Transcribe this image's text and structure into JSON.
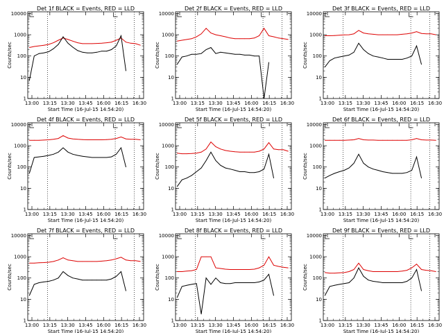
{
  "chart_data": [
    {
      "type": "line",
      "title": "Det 1f BLACK = Events, RED = LLD",
      "ylabel": "Counts/sec",
      "xlabel": "Start Time (16-Jul-15 14:54:20)",
      "series": [
        {
          "name": "BLACK = Events",
          "color": "#000000",
          "x": [
            13.0,
            13.15,
            13.3,
            13.45,
            13.6,
            13.75,
            13.9,
            14.05,
            14.2,
            14.35,
            14.5,
            14.65,
            14.8,
            14.95,
            15.1,
            15.25,
            15.4,
            15.55,
            15.7,
            15.85,
            16.0,
            16.15,
            16.3,
            16.45
          ],
          "y": [
            7,
            100,
            130,
            140,
            160,
            220,
            350,
            800,
            400,
            260,
            180,
            150,
            140,
            140,
            150,
            170,
            170,
            200,
            300,
            900,
            20,
            null,
            null,
            null
          ]
        },
        {
          "name": "RED = LLD",
          "color": "#dd0000",
          "x": [
            13.0,
            13.15,
            13.3,
            13.45,
            13.6,
            13.75,
            13.9,
            14.05,
            14.2,
            14.35,
            14.5,
            14.65,
            14.8,
            14.95,
            15.1,
            15.25,
            15.4,
            15.55,
            15.7,
            15.85,
            16.0,
            16.15,
            16.3,
            16.45
          ],
          "y": [
            250,
            280,
            300,
            320,
            350,
            420,
            550,
            700,
            600,
            500,
            420,
            380,
            380,
            380,
            390,
            400,
            420,
            450,
            550,
            700,
            450,
            400,
            380,
            320
          ]
        }
      ]
    },
    {
      "type": "line",
      "title": "Det 2f BLACK = Events, RED = LLD",
      "ylabel": "Counts/sec",
      "xlabel": "Start Time (16-Jul-15 14:54:20)",
      "series": [
        {
          "name": "BLACK = Events",
          "color": "#000000",
          "x": [
            13.0,
            13.15,
            13.3,
            13.45,
            13.6,
            13.75,
            13.9,
            14.05,
            14.2,
            14.35,
            14.5,
            14.65,
            14.8,
            14.95,
            15.1,
            15.25,
            15.4,
            15.55,
            15.7,
            15.85,
            16.0,
            16.15,
            16.3,
            16.45
          ],
          "y": [
            40,
            90,
            100,
            120,
            120,
            130,
            200,
            250,
            130,
            150,
            140,
            130,
            120,
            120,
            110,
            110,
            100,
            100,
            1,
            50,
            null,
            null,
            null,
            null
          ]
        },
        {
          "name": "RED = LLD",
          "color": "#dd0000",
          "x": [
            13.0,
            13.15,
            13.3,
            13.45,
            13.6,
            13.75,
            13.9,
            14.05,
            14.2,
            14.35,
            14.5,
            14.65,
            14.8,
            14.95,
            15.1,
            15.25,
            15.4,
            15.55,
            15.7,
            15.85,
            16.0,
            16.15,
            16.3,
            16.45
          ],
          "y": [
            500,
            550,
            600,
            650,
            800,
            1100,
            2000,
            1200,
            1000,
            900,
            800,
            700,
            650,
            650,
            650,
            650,
            700,
            900,
            2000,
            900,
            800,
            700,
            650,
            600
          ]
        }
      ]
    },
    {
      "type": "line",
      "title": "Det 3f BLACK = Events, RED = LLD",
      "ylabel": "Counts/sec",
      "xlabel": "Start Time (16-Jul-15 14:54:20)",
      "series": [
        {
          "name": "BLACK = Events",
          "color": "#000000",
          "x": [
            13.0,
            13.15,
            13.3,
            13.45,
            13.6,
            13.75,
            13.9,
            14.05,
            14.2,
            14.35,
            14.5,
            14.65,
            14.8,
            14.95,
            15.1,
            15.25,
            15.4,
            15.55,
            15.7,
            15.85,
            16.0,
            16.15,
            16.3,
            16.45
          ],
          "y": [
            30,
            60,
            80,
            90,
            100,
            110,
            150,
            400,
            200,
            130,
            100,
            90,
            80,
            70,
            70,
            70,
            70,
            80,
            100,
            300,
            40,
            null,
            null,
            null
          ]
        },
        {
          "name": "RED = LLD",
          "color": "#dd0000",
          "x": [
            13.0,
            13.15,
            13.3,
            13.45,
            13.6,
            13.75,
            13.9,
            14.05,
            14.2,
            14.35,
            14.5,
            14.65,
            14.8,
            14.95,
            15.1,
            15.25,
            15.4,
            15.55,
            15.7,
            15.85,
            16.0,
            16.15,
            16.3,
            16.45
          ],
          "y": [
            900,
            900,
            920,
            950,
            980,
            1000,
            1100,
            1600,
            1200,
            1100,
            1050,
            1000,
            1000,
            1000,
            1000,
            1000,
            1050,
            1100,
            1200,
            1400,
            1150,
            1100,
            1100,
            1000
          ]
        }
      ]
    },
    {
      "type": "line",
      "title": "Det 4f BLACK = Events, RED = LLD",
      "ylabel": "Counts/sec",
      "xlabel": "Start Time (16-Jul-15 14:54:20)",
      "series": [
        {
          "name": "BLACK = Events",
          "color": "#000000",
          "x": [
            13.0,
            13.15,
            13.3,
            13.45,
            13.6,
            13.75,
            13.9,
            14.05,
            14.2,
            14.35,
            14.5,
            14.65,
            14.8,
            14.95,
            15.1,
            15.25,
            15.4,
            15.55,
            15.7,
            15.85,
            16.0,
            16.15,
            16.3,
            16.45
          ],
          "y": [
            50,
            280,
            300,
            320,
            350,
            400,
            500,
            800,
            500,
            400,
            350,
            320,
            300,
            280,
            280,
            280,
            280,
            300,
            400,
            800,
            100,
            null,
            null,
            null
          ]
        },
        {
          "name": "RED = LLD",
          "color": "#dd0000",
          "x": [
            13.0,
            13.15,
            13.3,
            13.45,
            13.6,
            13.75,
            13.9,
            14.05,
            14.2,
            14.35,
            14.5,
            14.65,
            14.8,
            14.95,
            15.1,
            15.25,
            15.4,
            15.55,
            15.7,
            15.85,
            16.0,
            16.15,
            16.3,
            16.45
          ],
          "y": [
            1800,
            1800,
            1800,
            1850,
            1900,
            2000,
            2200,
            3000,
            2300,
            2100,
            2000,
            1950,
            1900,
            1900,
            1900,
            1900,
            1950,
            2000,
            2200,
            2600,
            2100,
            2000,
            2000,
            1900
          ]
        }
      ]
    },
    {
      "type": "line",
      "title": "Det 5f BLACK = Events, RED = LLD",
      "ylabel": "Counts/sec",
      "xlabel": "Start Time (16-Jul-15 14:54:20)",
      "series": [
        {
          "name": "BLACK = Events",
          "color": "#000000",
          "x": [
            13.0,
            13.15,
            13.3,
            13.45,
            13.6,
            13.75,
            13.9,
            14.05,
            14.2,
            14.35,
            14.5,
            14.65,
            14.8,
            14.95,
            15.1,
            15.25,
            15.4,
            15.55,
            15.7,
            15.85,
            16.0,
            16.15,
            16.3,
            16.45
          ],
          "y": [
            12,
            25,
            30,
            40,
            60,
            90,
            200,
            500,
            200,
            120,
            90,
            80,
            70,
            60,
            60,
            55,
            55,
            60,
            80,
            400,
            30,
            null,
            null,
            null
          ]
        },
        {
          "name": "RED = LLD",
          "color": "#dd0000",
          "x": [
            13.0,
            13.15,
            13.3,
            13.45,
            13.6,
            13.75,
            13.9,
            14.05,
            14.2,
            14.35,
            14.5,
            14.65,
            14.8,
            14.95,
            15.1,
            15.25,
            15.4,
            15.55,
            15.7,
            15.85,
            16.0,
            16.15,
            16.3,
            16.45
          ],
          "y": [
            450,
            420,
            420,
            430,
            450,
            500,
            700,
            1500,
            900,
            700,
            600,
            550,
            520,
            500,
            500,
            500,
            500,
            550,
            700,
            1400,
            700,
            650,
            650,
            550
          ]
        }
      ]
    },
    {
      "type": "line",
      "title": "Det 6f BLACK = Events, RED = LLD",
      "ylabel": "Counts/sec",
      "xlabel": "Start Time (16-Jul-15 14:54:20)",
      "series": [
        {
          "name": "BLACK = Events",
          "color": "#000000",
          "x": [
            13.0,
            13.15,
            13.3,
            13.45,
            13.6,
            13.75,
            13.9,
            14.05,
            14.2,
            14.35,
            14.5,
            14.65,
            14.8,
            14.95,
            15.1,
            15.25,
            15.4,
            15.55,
            15.7,
            15.85,
            16.0,
            16.15,
            16.3,
            16.45
          ],
          "y": [
            30,
            40,
            50,
            60,
            70,
            90,
            150,
            400,
            150,
            100,
            80,
            70,
            60,
            55,
            50,
            50,
            50,
            55,
            70,
            300,
            30,
            null,
            null,
            null
          ]
        },
        {
          "name": "RED = LLD",
          "color": "#dd0000",
          "x": [
            13.0,
            13.15,
            13.3,
            13.45,
            13.6,
            13.75,
            13.9,
            14.05,
            14.2,
            14.35,
            14.5,
            14.65,
            14.8,
            14.95,
            15.1,
            15.25,
            15.4,
            15.55,
            15.7,
            15.85,
            16.0,
            16.15,
            16.3,
            16.45
          ],
          "y": [
            1800,
            1800,
            1800,
            1800,
            1800,
            1850,
            1900,
            2200,
            1900,
            1850,
            1850,
            1800,
            1800,
            1800,
            1800,
            1800,
            1800,
            1800,
            1900,
            2200,
            1900,
            1850,
            1850,
            1800
          ]
        }
      ]
    },
    {
      "type": "line",
      "title": "Det 7f BLACK = Events, RED = LLD",
      "ylabel": "Counts/sec",
      "xlabel": "Start Time (16-Jul-15 14:54:20)",
      "series": [
        {
          "name": "BLACK = Events",
          "color": "#000000",
          "x": [
            13.0,
            13.15,
            13.3,
            13.45,
            13.6,
            13.75,
            13.9,
            14.05,
            14.2,
            14.35,
            14.5,
            14.65,
            14.8,
            14.95,
            15.1,
            15.25,
            15.4,
            15.55,
            15.7,
            15.85,
            16.0,
            16.15,
            16.3,
            16.45
          ],
          "y": [
            15,
            50,
            60,
            65,
            70,
            80,
            100,
            200,
            130,
            100,
            90,
            80,
            80,
            80,
            80,
            80,
            80,
            90,
            120,
            200,
            25,
            null,
            null,
            null
          ]
        },
        {
          "name": "RED = LLD",
          "color": "#dd0000",
          "x": [
            13.0,
            13.15,
            13.3,
            13.45,
            13.6,
            13.75,
            13.9,
            14.05,
            14.2,
            14.35,
            14.5,
            14.65,
            14.8,
            14.95,
            15.1,
            15.25,
            15.4,
            15.55,
            15.7,
            15.85,
            16.0,
            16.15,
            16.3,
            16.45
          ],
          "y": [
            500,
            500,
            520,
            530,
            550,
            600,
            700,
            900,
            700,
            650,
            600,
            600,
            600,
            600,
            600,
            620,
            650,
            700,
            800,
            950,
            700,
            650,
            650,
            600
          ]
        }
      ]
    },
    {
      "type": "line",
      "title": "Det 8f BLACK = Events, RED = LLD",
      "ylabel": "Counts/sec",
      "xlabel": "Start Time (16-Jul-15 14:54:20)",
      "series": [
        {
          "name": "BLACK = Events",
          "color": "#000000",
          "x": [
            13.0,
            13.15,
            13.3,
            13.45,
            13.6,
            13.75,
            13.9,
            14.05,
            14.2,
            14.35,
            14.5,
            14.65,
            14.8,
            14.95,
            15.1,
            15.25,
            15.4,
            15.55,
            15.7,
            15.85,
            16.0,
            16.15,
            16.3,
            16.45
          ],
          "y": [
            12,
            40,
            45,
            50,
            55,
            2,
            100,
            50,
            100,
            60,
            55,
            55,
            60,
            60,
            60,
            60,
            60,
            65,
            80,
            150,
            15,
            null,
            null,
            null
          ]
        },
        {
          "name": "RED = LLD",
          "color": "#dd0000",
          "x": [
            13.0,
            13.15,
            13.3,
            13.45,
            13.6,
            13.75,
            13.9,
            14.05,
            14.2,
            14.35,
            14.5,
            14.65,
            14.8,
            14.95,
            15.1,
            15.25,
            15.4,
            15.55,
            15.7,
            15.85,
            16.0,
            16.15,
            16.3,
            16.45
          ],
          "y": [
            200,
            200,
            210,
            220,
            250,
            1000,
            1000,
            1000,
            300,
            280,
            260,
            250,
            250,
            250,
            250,
            250,
            260,
            300,
            400,
            1000,
            400,
            350,
            320,
            300
          ]
        }
      ]
    },
    {
      "type": "line",
      "title": "Det 9f BLACK = Events, RED = LLD",
      "ylabel": "Counts/sec",
      "xlabel": "Start Time (16-Jul-15 14:54:20)",
      "series": [
        {
          "name": "BLACK = Events",
          "color": "#000000",
          "x": [
            13.0,
            13.15,
            13.3,
            13.45,
            13.6,
            13.75,
            13.9,
            14.05,
            14.2,
            14.35,
            14.5,
            14.65,
            14.8,
            14.95,
            15.1,
            15.25,
            15.4,
            15.55,
            15.7,
            15.85,
            16.0,
            16.15,
            16.3,
            16.45
          ],
          "y": [
            15,
            40,
            45,
            50,
            55,
            60,
            100,
            300,
            120,
            80,
            70,
            65,
            60,
            60,
            60,
            60,
            60,
            70,
            100,
            250,
            25,
            null,
            null,
            null
          ]
        },
        {
          "name": "RED = LLD",
          "color": "#dd0000",
          "x": [
            13.0,
            13.15,
            13.3,
            13.45,
            13.6,
            13.75,
            13.9,
            14.05,
            14.2,
            14.35,
            14.5,
            14.65,
            14.8,
            14.95,
            15.1,
            15.25,
            15.4,
            15.55,
            15.7,
            15.85,
            16.0,
            16.15,
            16.3,
            16.45
          ],
          "y": [
            180,
            170,
            170,
            175,
            180,
            200,
            250,
            500,
            250,
            220,
            200,
            200,
            200,
            200,
            200,
            200,
            210,
            230,
            300,
            450,
            250,
            230,
            220,
            200
          ]
        }
      ]
    }
  ],
  "axes": {
    "xlim": [
      12.95,
      16.55
    ],
    "ylim": [
      1,
      12000
    ],
    "ylog": true,
    "xtick_labels": [
      "13:00",
      "13:15",
      "13:30",
      "13:45",
      "16:00",
      "16:15",
      "16:30"
    ],
    "ytick_labels": [
      "1",
      "10",
      "100",
      "1000",
      "10000"
    ]
  }
}
